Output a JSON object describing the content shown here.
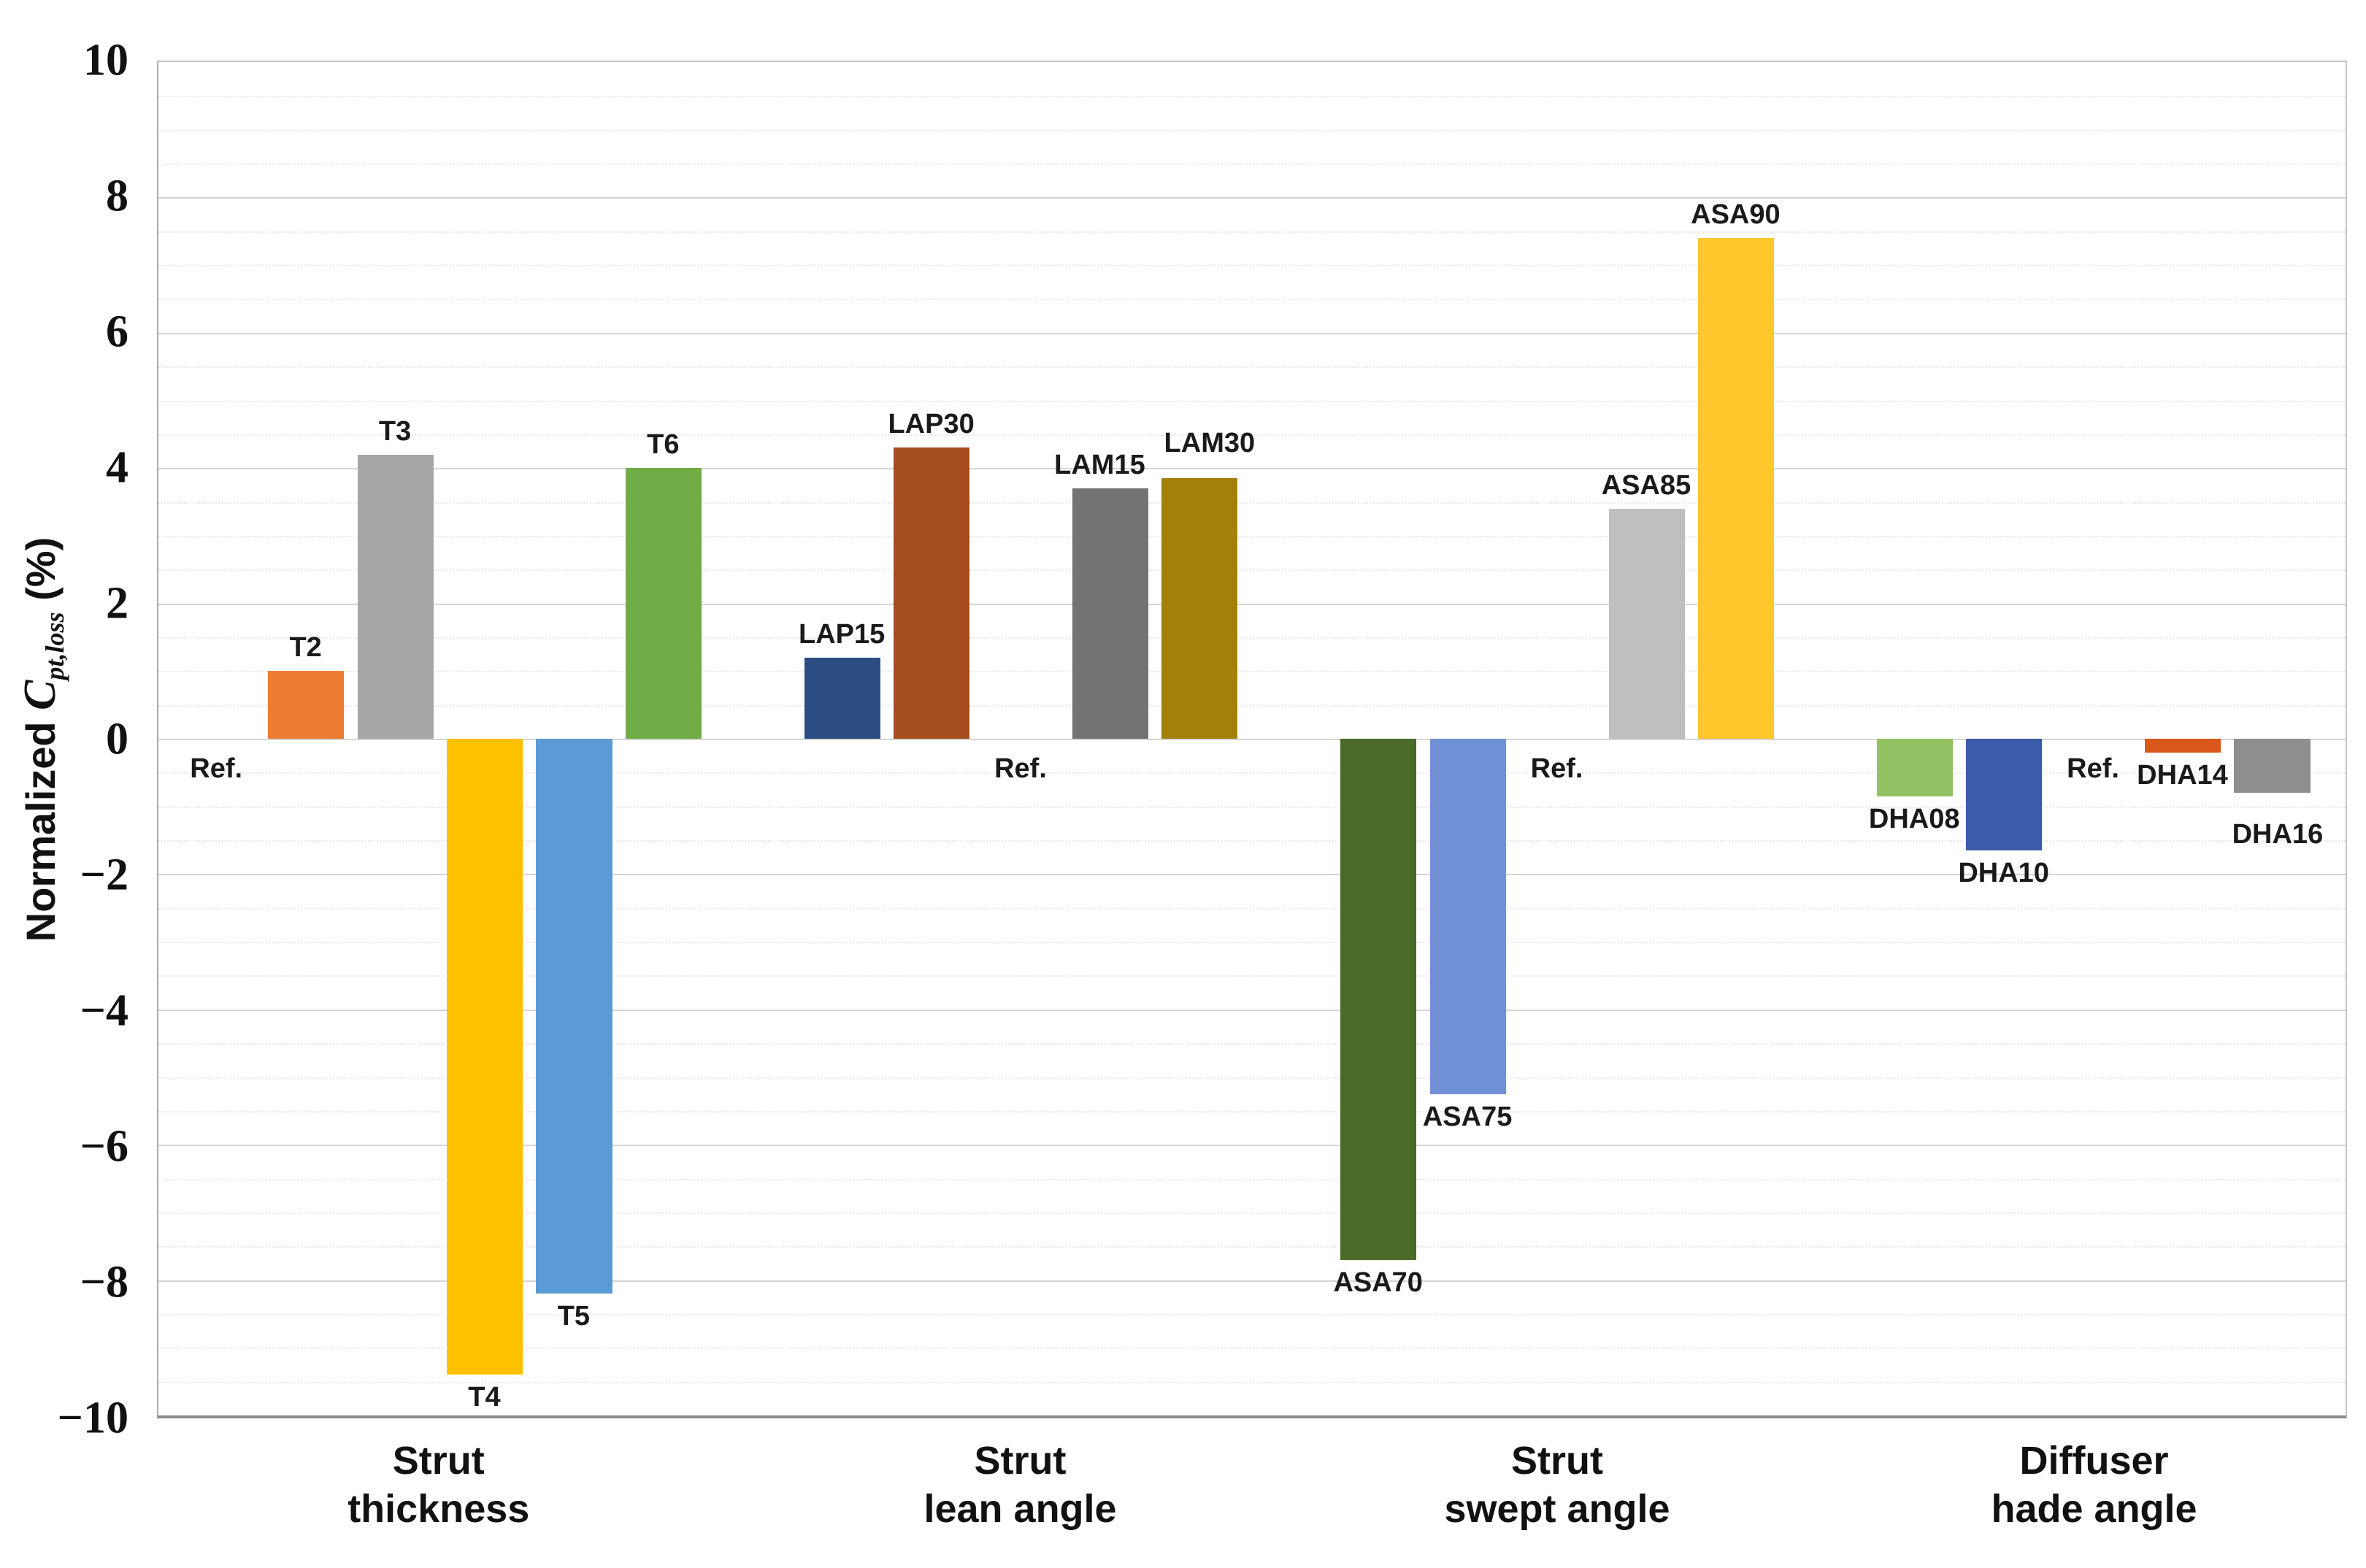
{
  "chart_data": {
    "type": "bar",
    "title": "",
    "ylabel_parts": {
      "prefix": "Normalized",
      "symbol": "C",
      "subscript": "pt,loss",
      "suffix": "(%)"
    },
    "ylim": [
      -10,
      10
    ],
    "ytick_step": 2,
    "minor_gridline_step": 0.5,
    "yticks": [
      "10",
      "8",
      "6",
      "4",
      "2",
      "0",
      "−2",
      "−4",
      "−6",
      "−8",
      "−10"
    ],
    "grid": true,
    "legend": false,
    "baseline_label": "Ref.",
    "groups": [
      {
        "label_lines": [
          "Strut",
          "thickness"
        ],
        "bars": [
          {
            "name": "Ref.",
            "value": 0,
            "is_reference": true,
            "color": null
          },
          {
            "name": "T2",
            "value": 1.0,
            "color": "#ED7D31"
          },
          {
            "name": "T3",
            "value": 4.2,
            "color": "#A6A6A6"
          },
          {
            "name": "T4",
            "value": -9.4,
            "color": "#FFC000"
          },
          {
            "name": "T5",
            "value": -8.2,
            "color": "#5B9BD5"
          },
          {
            "name": "T6",
            "value": 4.0,
            "color": "#70AD47"
          }
        ]
      },
      {
        "label_lines": [
          "Strut",
          "lean angle"
        ],
        "bars": [
          {
            "name": "LAP15",
            "value": 1.2,
            "color": "#2B4D81"
          },
          {
            "name": "LAP30",
            "value": 4.3,
            "color": "#A64D1E"
          },
          {
            "name": "Ref.",
            "value": 0,
            "is_reference": true,
            "color": null
          },
          {
            "name": "LAM15",
            "value": 3.7,
            "color": "#737373"
          },
          {
            "name": "LAM30",
            "value": 3.85,
            "color": "#A3800A"
          }
        ]
      },
      {
        "label_lines": [
          "Strut",
          "swept angle"
        ],
        "bars": [
          {
            "name": "ASA70",
            "value": -7.7,
            "color": "#4A6B28"
          },
          {
            "name": "ASA75",
            "value": -5.25,
            "color": "#7090D6"
          },
          {
            "name": "Ref.",
            "value": 0,
            "is_reference": true,
            "color": null
          },
          {
            "name": "ASA85",
            "value": 3.4,
            "color": "#BFBFBF"
          },
          {
            "name": "ASA90",
            "value": 7.4,
            "color": "#FFC72C"
          }
        ]
      },
      {
        "label_lines": [
          "Diffuser",
          "hade angle"
        ],
        "bars": [
          {
            "name": "DHA08",
            "value": -0.85,
            "color": "#92C164"
          },
          {
            "name": "DHA10",
            "value": -1.65,
            "color": "#3A5CA9"
          },
          {
            "name": "Ref.",
            "value": 0,
            "is_reference": true,
            "color": null
          },
          {
            "name": "DHA14",
            "value": -0.2,
            "color": "#D9571C"
          },
          {
            "name": "DHA16",
            "value": -0.8,
            "color": "#8E8E8E"
          }
        ]
      }
    ]
  }
}
